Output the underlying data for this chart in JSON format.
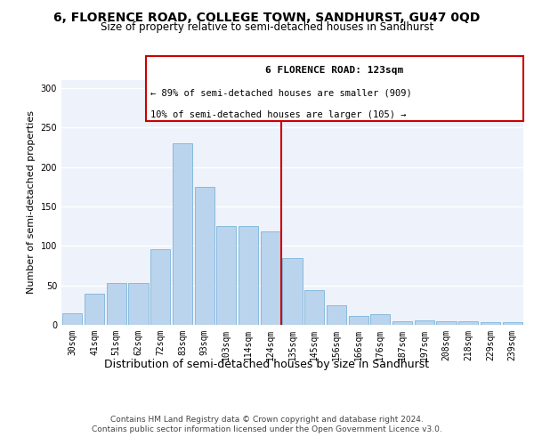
{
  "title": "6, FLORENCE ROAD, COLLEGE TOWN, SANDHURST, GU47 0QD",
  "subtitle": "Size of property relative to semi-detached houses in Sandhurst",
  "xlabel": "Distribution of semi-detached houses by size in Sandhurst",
  "ylabel": "Number of semi-detached properties",
  "categories": [
    "30sqm",
    "41sqm",
    "51sqm",
    "62sqm",
    "72sqm",
    "83sqm",
    "93sqm",
    "103sqm",
    "114sqm",
    "124sqm",
    "135sqm",
    "145sqm",
    "156sqm",
    "166sqm",
    "176sqm",
    "187sqm",
    "197sqm",
    "208sqm",
    "218sqm",
    "229sqm",
    "239sqm"
  ],
  "values": [
    15,
    39,
    53,
    53,
    96,
    230,
    175,
    125,
    125,
    118,
    85,
    44,
    25,
    11,
    14,
    5,
    6,
    5,
    4,
    3,
    3
  ],
  "bar_color": "#bad4ed",
  "bar_edge_color": "#6aaad4",
  "property_label": "6 FLORENCE ROAD: 123sqm",
  "pct_smaller": 89,
  "n_smaller": 909,
  "pct_larger": 10,
  "n_larger": 105,
  "vline_color": "#cc0000",
  "vline_x_index": 9.5,
  "annotation_box_color": "#cc0000",
  "ylim": [
    0,
    310
  ],
  "yticks": [
    0,
    50,
    100,
    150,
    200,
    250,
    300
  ],
  "background_color": "#eef2fa",
  "footer_text": "Contains HM Land Registry data © Crown copyright and database right 2024.\nContains public sector information licensed under the Open Government Licence v3.0.",
  "title_fontsize": 10,
  "subtitle_fontsize": 8.5,
  "xlabel_fontsize": 9,
  "ylabel_fontsize": 8,
  "tick_fontsize": 7,
  "footer_fontsize": 6.5,
  "annot_fontsize_title": 8,
  "annot_fontsize_text": 7.5
}
